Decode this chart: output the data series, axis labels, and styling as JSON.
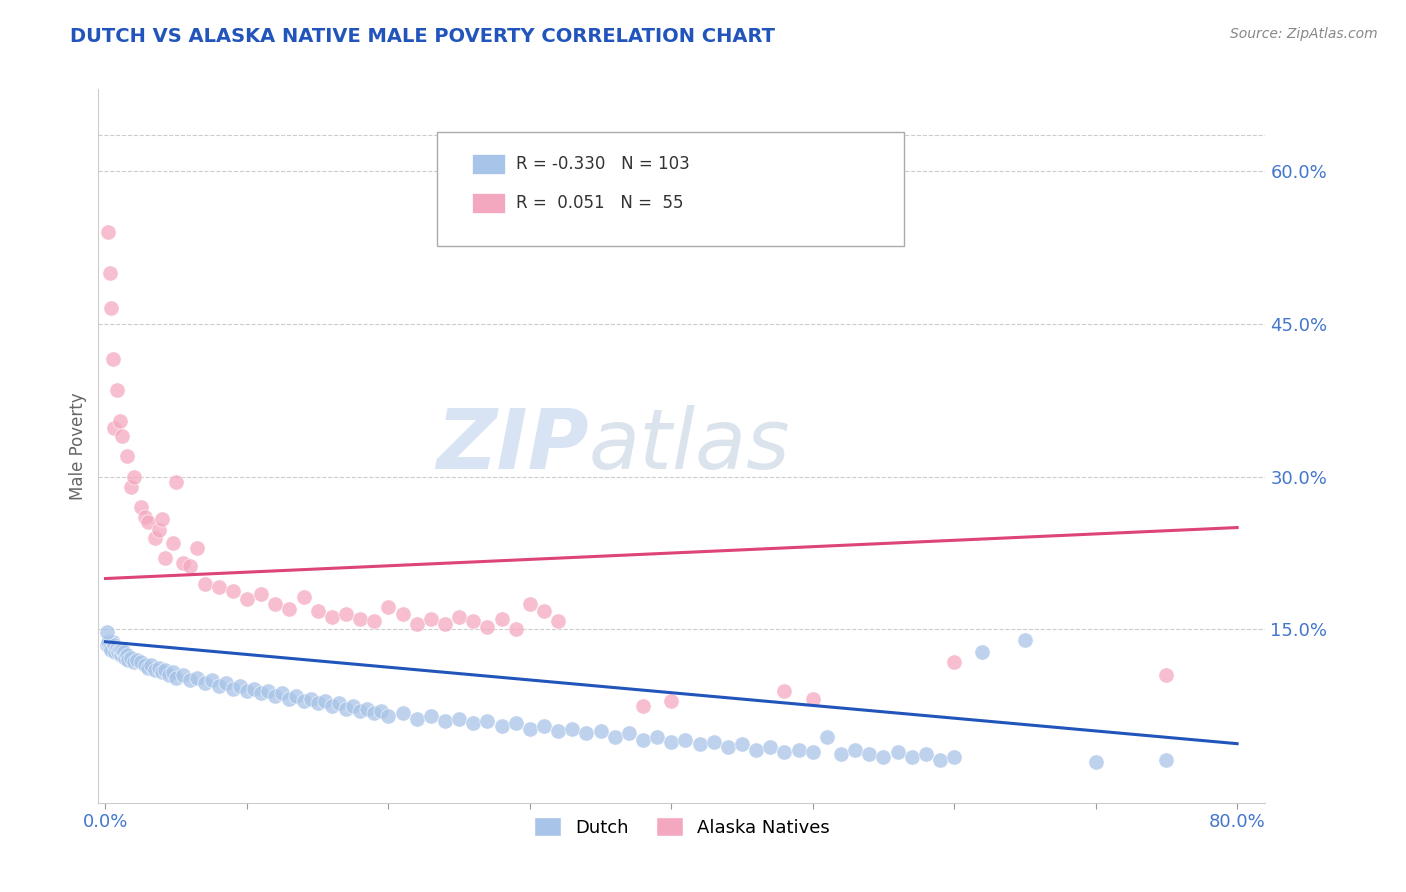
{
  "title": "DUTCH VS ALASKA NATIVE MALE POVERTY CORRELATION CHART",
  "source": "Source: ZipAtlas.com",
  "ylabel": "Male Poverty",
  "xlim": [
    -0.005,
    0.82
  ],
  "ylim": [
    -0.02,
    0.68
  ],
  "xticks": [
    0.0,
    0.1,
    0.2,
    0.3,
    0.4,
    0.5,
    0.6,
    0.7,
    0.8
  ],
  "xtick_labels": [
    "0.0%",
    "",
    "",
    "",
    "",
    "",
    "",
    "",
    "80.0%"
  ],
  "ytick_positions": [
    0.15,
    0.3,
    0.45,
    0.6
  ],
  "ytick_labels": [
    "15.0%",
    "30.0%",
    "45.0%",
    "60.0%"
  ],
  "grid_color": "#cccccc",
  "background_color": "#ffffff",
  "watermark_zip": "ZIP",
  "watermark_atlas": "atlas",
  "legend_dutch_r": "-0.330",
  "legend_dutch_n": "103",
  "legend_alaska_r": "0.051",
  "legend_alaska_n": "55",
  "dutch_color": "#a8c4e8",
  "alaska_color": "#f4a8c0",
  "dutch_line_color": "#2255bb",
  "alaska_line_color": "#dd4477",
  "dutch_line_start_y": 0.138,
  "dutch_line_end_y": 0.038,
  "alaska_line_start_y": 0.2,
  "alaska_line_end_y": 0.25,
  "dutch_scatter": [
    [
      0.001,
      0.135
    ],
    [
      0.002,
      0.138
    ],
    [
      0.003,
      0.132
    ],
    [
      0.004,
      0.13
    ],
    [
      0.005,
      0.138
    ],
    [
      0.006,
      0.135
    ],
    [
      0.007,
      0.128
    ],
    [
      0.008,
      0.132
    ],
    [
      0.009,
      0.128
    ],
    [
      0.01,
      0.13
    ],
    [
      0.011,
      0.125
    ],
    [
      0.012,
      0.13
    ],
    [
      0.013,
      0.128
    ],
    [
      0.014,
      0.122
    ],
    [
      0.015,
      0.125
    ],
    [
      0.016,
      0.12
    ],
    [
      0.018,
      0.122
    ],
    [
      0.02,
      0.118
    ],
    [
      0.022,
      0.12
    ],
    [
      0.025,
      0.118
    ],
    [
      0.028,
      0.115
    ],
    [
      0.03,
      0.112
    ],
    [
      0.032,
      0.115
    ],
    [
      0.035,
      0.11
    ],
    [
      0.038,
      0.112
    ],
    [
      0.04,
      0.108
    ],
    [
      0.042,
      0.11
    ],
    [
      0.045,
      0.105
    ],
    [
      0.048,
      0.108
    ],
    [
      0.05,
      0.102
    ],
    [
      0.055,
      0.105
    ],
    [
      0.06,
      0.1
    ],
    [
      0.065,
      0.102
    ],
    [
      0.07,
      0.098
    ],
    [
      0.075,
      0.1
    ],
    [
      0.08,
      0.095
    ],
    [
      0.085,
      0.098
    ],
    [
      0.09,
      0.092
    ],
    [
      0.095,
      0.095
    ],
    [
      0.1,
      0.09
    ],
    [
      0.105,
      0.092
    ],
    [
      0.11,
      0.088
    ],
    [
      0.115,
      0.09
    ],
    [
      0.12,
      0.085
    ],
    [
      0.125,
      0.088
    ],
    [
      0.13,
      0.082
    ],
    [
      0.135,
      0.085
    ],
    [
      0.14,
      0.08
    ],
    [
      0.145,
      0.082
    ],
    [
      0.15,
      0.078
    ],
    [
      0.155,
      0.08
    ],
    [
      0.16,
      0.075
    ],
    [
      0.165,
      0.078
    ],
    [
      0.17,
      0.072
    ],
    [
      0.175,
      0.075
    ],
    [
      0.18,
      0.07
    ],
    [
      0.185,
      0.072
    ],
    [
      0.19,
      0.068
    ],
    [
      0.195,
      0.07
    ],
    [
      0.2,
      0.065
    ],
    [
      0.21,
      0.068
    ],
    [
      0.22,
      0.062
    ],
    [
      0.23,
      0.065
    ],
    [
      0.24,
      0.06
    ],
    [
      0.25,
      0.062
    ],
    [
      0.26,
      0.058
    ],
    [
      0.27,
      0.06
    ],
    [
      0.28,
      0.055
    ],
    [
      0.29,
      0.058
    ],
    [
      0.3,
      0.052
    ],
    [
      0.31,
      0.055
    ],
    [
      0.32,
      0.05
    ],
    [
      0.33,
      0.052
    ],
    [
      0.34,
      0.048
    ],
    [
      0.35,
      0.05
    ],
    [
      0.36,
      0.045
    ],
    [
      0.37,
      0.048
    ],
    [
      0.38,
      0.042
    ],
    [
      0.39,
      0.045
    ],
    [
      0.4,
      0.04
    ],
    [
      0.41,
      0.042
    ],
    [
      0.42,
      0.038
    ],
    [
      0.43,
      0.04
    ],
    [
      0.44,
      0.035
    ],
    [
      0.45,
      0.038
    ],
    [
      0.46,
      0.032
    ],
    [
      0.47,
      0.035
    ],
    [
      0.48,
      0.03
    ],
    [
      0.49,
      0.032
    ],
    [
      0.5,
      0.03
    ],
    [
      0.51,
      0.045
    ],
    [
      0.52,
      0.028
    ],
    [
      0.53,
      0.032
    ],
    [
      0.54,
      0.028
    ],
    [
      0.55,
      0.025
    ],
    [
      0.56,
      0.03
    ],
    [
      0.57,
      0.025
    ],
    [
      0.58,
      0.028
    ],
    [
      0.59,
      0.022
    ],
    [
      0.6,
      0.025
    ],
    [
      0.62,
      0.128
    ],
    [
      0.65,
      0.14
    ],
    [
      0.7,
      0.02
    ],
    [
      0.75,
      0.022
    ],
    [
      0.001,
      0.148
    ]
  ],
  "alaska_scatter": [
    [
      0.002,
      0.54
    ],
    [
      0.003,
      0.5
    ],
    [
      0.004,
      0.465
    ],
    [
      0.005,
      0.415
    ],
    [
      0.006,
      0.348
    ],
    [
      0.008,
      0.385
    ],
    [
      0.01,
      0.355
    ],
    [
      0.012,
      0.34
    ],
    [
      0.015,
      0.32
    ],
    [
      0.018,
      0.29
    ],
    [
      0.02,
      0.3
    ],
    [
      0.025,
      0.27
    ],
    [
      0.028,
      0.26
    ],
    [
      0.03,
      0.255
    ],
    [
      0.035,
      0.24
    ],
    [
      0.038,
      0.248
    ],
    [
      0.04,
      0.258
    ],
    [
      0.042,
      0.22
    ],
    [
      0.048,
      0.235
    ],
    [
      0.05,
      0.295
    ],
    [
      0.055,
      0.215
    ],
    [
      0.06,
      0.212
    ],
    [
      0.065,
      0.23
    ],
    [
      0.07,
      0.195
    ],
    [
      0.08,
      0.192
    ],
    [
      0.09,
      0.188
    ],
    [
      0.1,
      0.18
    ],
    [
      0.11,
      0.185
    ],
    [
      0.12,
      0.175
    ],
    [
      0.13,
      0.17
    ],
    [
      0.14,
      0.182
    ],
    [
      0.15,
      0.168
    ],
    [
      0.16,
      0.162
    ],
    [
      0.17,
      0.165
    ],
    [
      0.18,
      0.16
    ],
    [
      0.19,
      0.158
    ],
    [
      0.2,
      0.172
    ],
    [
      0.21,
      0.165
    ],
    [
      0.22,
      0.155
    ],
    [
      0.23,
      0.16
    ],
    [
      0.24,
      0.155
    ],
    [
      0.25,
      0.162
    ],
    [
      0.26,
      0.158
    ],
    [
      0.27,
      0.152
    ],
    [
      0.28,
      0.16
    ],
    [
      0.29,
      0.15
    ],
    [
      0.3,
      0.175
    ],
    [
      0.31,
      0.168
    ],
    [
      0.32,
      0.158
    ],
    [
      0.38,
      0.075
    ],
    [
      0.4,
      0.08
    ],
    [
      0.48,
      0.09
    ],
    [
      0.5,
      0.082
    ],
    [
      0.6,
      0.118
    ],
    [
      0.75,
      0.105
    ]
  ],
  "title_color": "#2255bb",
  "axis_label_color": "#666666",
  "tick_label_color": "#4477cc",
  "source_color": "#888888"
}
